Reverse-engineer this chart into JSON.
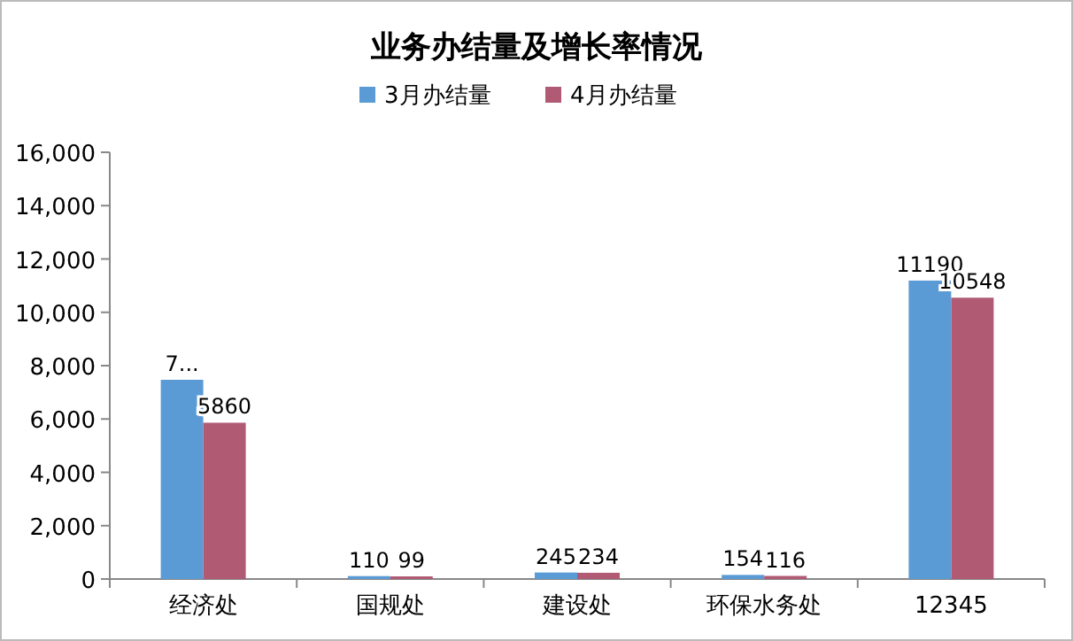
{
  "chart_data": {
    "type": "bar",
    "title": "业务办结量及增长率情况",
    "categories": [
      "经济处",
      "国规处",
      "建设处",
      "环保水务处",
      "12345"
    ],
    "series": [
      {
        "name": "3月办结量",
        "color": "#5b9bd5",
        "values": [
          7470,
          110,
          245,
          154,
          11190
        ],
        "value_labels": [
          "7...",
          "110",
          "245",
          "154",
          "11190"
        ]
      },
      {
        "name": "4月办结量",
        "color": "#b05a74",
        "values": [
          5860,
          99,
          234,
          116,
          10548
        ],
        "value_labels": [
          "5860",
          "99",
          "234",
          "116",
          "10548"
        ]
      }
    ],
    "ylim": [
      0,
      16000
    ],
    "yticks": [
      {
        "value": 0,
        "label": "0"
      },
      {
        "value": 2000,
        "label": "2,000"
      },
      {
        "value": 4000,
        "label": "4,000"
      },
      {
        "value": 6000,
        "label": "6,000"
      },
      {
        "value": 8000,
        "label": "8,000"
      },
      {
        "value": 10000,
        "label": "10,000"
      },
      {
        "value": 12000,
        "label": "12,000"
      },
      {
        "value": 14000,
        "label": "14,000"
      },
      {
        "value": 16000,
        "label": "16,000"
      }
    ],
    "grid": false,
    "legend": "top"
  }
}
